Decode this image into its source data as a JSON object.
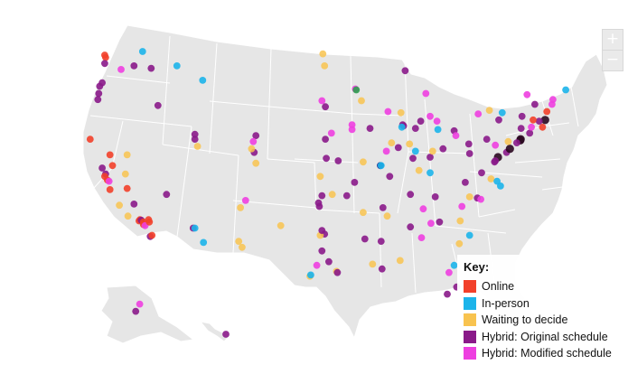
{
  "map": {
    "zoom_in_label": "+",
    "zoom_out_label": "−",
    "legend": {
      "title": "Key:",
      "items": [
        {
          "label": "Online",
          "color": "#f2402a"
        },
        {
          "label": "In-person",
          "color": "#1cb4ea"
        },
        {
          "label": "Waiting to decide",
          "color": "#f8c34f"
        },
        {
          "label": "Hybrid: Original schedule",
          "color": "#8a1a89"
        },
        {
          "label": "Hybrid: Modified schedule",
          "color": "#ee3fe0"
        }
      ]
    },
    "points": [
      {
        "lat": 47.6,
        "lon": -122.3,
        "s": "online"
      },
      {
        "lat": 47.8,
        "lon": -122.4,
        "s": "online"
      },
      {
        "lat": 47.1,
        "lon": -122.4,
        "s": "hybrid_orig"
      },
      {
        "lat": 46.6,
        "lon": -120.5,
        "s": "hybrid_mod"
      },
      {
        "lat": 45.5,
        "lon": -122.7,
        "s": "hybrid_orig"
      },
      {
        "lat": 45.2,
        "lon": -123.0,
        "s": "hybrid_orig"
      },
      {
        "lat": 44.6,
        "lon": -123.1,
        "s": "hybrid_orig"
      },
      {
        "lat": 44.1,
        "lon": -123.2,
        "s": "hybrid_orig"
      },
      {
        "lat": 48.1,
        "lon": -118.0,
        "s": "inperson"
      },
      {
        "lat": 46.9,
        "lon": -119.0,
        "s": "hybrid_orig"
      },
      {
        "lat": 46.7,
        "lon": -117.0,
        "s": "hybrid_orig"
      },
      {
        "lat": 46.9,
        "lon": -114.0,
        "s": "inperson"
      },
      {
        "lat": 45.7,
        "lon": -111.0,
        "s": "inperson"
      },
      {
        "lat": 43.6,
        "lon": -116.2,
        "s": "hybrid_orig"
      },
      {
        "lat": 40.8,
        "lon": -124.1,
        "s": "online"
      },
      {
        "lat": 39.5,
        "lon": -121.8,
        "s": "online"
      },
      {
        "lat": 38.6,
        "lon": -121.5,
        "s": "online"
      },
      {
        "lat": 38.4,
        "lon": -122.7,
        "s": "hybrid_orig"
      },
      {
        "lat": 37.9,
        "lon": -122.3,
        "s": "hybrid_orig"
      },
      {
        "lat": 37.7,
        "lon": -122.4,
        "s": "online"
      },
      {
        "lat": 37.4,
        "lon": -122.1,
        "s": "online"
      },
      {
        "lat": 37.3,
        "lon": -121.9,
        "s": "hybrid_mod"
      },
      {
        "lat": 36.7,
        "lon": -119.8,
        "s": "online"
      },
      {
        "lat": 36.6,
        "lon": -121.8,
        "s": "online"
      },
      {
        "lat": 37.9,
        "lon": -120.0,
        "s": "waiting"
      },
      {
        "lat": 35.3,
        "lon": -120.7,
        "s": "waiting"
      },
      {
        "lat": 35.4,
        "lon": -119.0,
        "s": "hybrid_orig"
      },
      {
        "lat": 34.4,
        "lon": -119.7,
        "s": "waiting"
      },
      {
        "lat": 34.1,
        "lon": -118.3,
        "s": "online"
      },
      {
        "lat": 34.0,
        "lon": -118.4,
        "s": "online"
      },
      {
        "lat": 34.05,
        "lon": -118.15,
        "s": "hybrid_orig"
      },
      {
        "lat": 33.9,
        "lon": -117.9,
        "s": "online"
      },
      {
        "lat": 33.7,
        "lon": -117.9,
        "s": "online"
      },
      {
        "lat": 33.6,
        "lon": -117.7,
        "s": "hybrid_mod"
      },
      {
        "lat": 34.1,
        "lon": -117.3,
        "s": "online"
      },
      {
        "lat": 33.9,
        "lon": -117.2,
        "s": "online"
      },
      {
        "lat": 32.7,
        "lon": -117.1,
        "s": "hybrid_orig"
      },
      {
        "lat": 32.8,
        "lon": -116.9,
        "s": "online"
      },
      {
        "lat": 39.5,
        "lon": -119.8,
        "s": "waiting"
      },
      {
        "lat": 40.8,
        "lon": -111.9,
        "s": "hybrid_orig"
      },
      {
        "lat": 41.2,
        "lon": -111.9,
        "s": "hybrid_orig"
      },
      {
        "lat": 40.2,
        "lon": -111.6,
        "s": "waiting"
      },
      {
        "lat": 36.2,
        "lon": -115.2,
        "s": "hybrid_orig"
      },
      {
        "lat": 41.1,
        "lon": -104.8,
        "s": "hybrid_orig"
      },
      {
        "lat": 40.6,
        "lon": -105.1,
        "s": "hybrid_mod"
      },
      {
        "lat": 39.7,
        "lon": -105.0,
        "s": "hybrid_orig"
      },
      {
        "lat": 40.0,
        "lon": -105.3,
        "s": "waiting"
      },
      {
        "lat": 38.8,
        "lon": -104.8,
        "s": "waiting"
      },
      {
        "lat": 35.1,
        "lon": -106.6,
        "s": "waiting"
      },
      {
        "lat": 35.7,
        "lon": -106.0,
        "s": "hybrid_mod"
      },
      {
        "lat": 33.4,
        "lon": -112.1,
        "s": "hybrid_orig"
      },
      {
        "lat": 33.4,
        "lon": -111.9,
        "s": "inperson"
      },
      {
        "lat": 32.2,
        "lon": -110.9,
        "s": "inperson"
      },
      {
        "lat": 32.3,
        "lon": -106.8,
        "s": "waiting"
      },
      {
        "lat": 31.8,
        "lon": -106.4,
        "s": "waiting"
      },
      {
        "lat": 46.9,
        "lon": -96.8,
        "s": "waiting"
      },
      {
        "lat": 47.9,
        "lon": -97.0,
        "s": "waiting"
      },
      {
        "lat": 44.0,
        "lon": -97.1,
        "s": "hybrid_mod"
      },
      {
        "lat": 43.5,
        "lon": -96.7,
        "s": "hybrid_orig"
      },
      {
        "lat": 41.3,
        "lon": -96.0,
        "s": "hybrid_mod"
      },
      {
        "lat": 40.8,
        "lon": -96.7,
        "s": "hybrid_orig"
      },
      {
        "lat": 39.0,
        "lon": -95.2,
        "s": "hybrid_orig"
      },
      {
        "lat": 39.2,
        "lon": -96.6,
        "s": "hybrid_orig"
      },
      {
        "lat": 37.7,
        "lon": -97.3,
        "s": "waiting"
      },
      {
        "lat": 36.2,
        "lon": -95.9,
        "s": "waiting"
      },
      {
        "lat": 35.2,
        "lon": -97.4,
        "s": "hybrid_orig"
      },
      {
        "lat": 36.1,
        "lon": -97.1,
        "s": "hybrid_orig"
      },
      {
        "lat": 35.5,
        "lon": -97.5,
        "s": "hybrid_orig"
      },
      {
        "lat": 33.6,
        "lon": -101.9,
        "s": "waiting"
      },
      {
        "lat": 32.9,
        "lon": -96.8,
        "s": "hybrid_orig"
      },
      {
        "lat": 32.8,
        "lon": -97.3,
        "s": "waiting"
      },
      {
        "lat": 33.2,
        "lon": -97.1,
        "s": "hybrid_orig"
      },
      {
        "lat": 31.5,
        "lon": -97.1,
        "s": "hybrid_orig"
      },
      {
        "lat": 30.3,
        "lon": -97.7,
        "s": "hybrid_mod"
      },
      {
        "lat": 30.6,
        "lon": -96.3,
        "s": "hybrid_orig"
      },
      {
        "lat": 29.8,
        "lon": -95.4,
        "s": "waiting"
      },
      {
        "lat": 29.7,
        "lon": -95.3,
        "s": "hybrid_orig"
      },
      {
        "lat": 29.4,
        "lon": -98.5,
        "s": "waiting"
      },
      {
        "lat": 29.5,
        "lon": -98.4,
        "s": "inperson"
      },
      {
        "lat": 44.98,
        "lon": -93.2,
        "s": "hybrid_mod"
      },
      {
        "lat": 44.9,
        "lon": -93.1,
        "s": "green"
      },
      {
        "lat": 44.0,
        "lon": -92.5,
        "s": "waiting"
      },
      {
        "lat": 41.7,
        "lon": -91.5,
        "s": "hybrid_orig"
      },
      {
        "lat": 42.0,
        "lon": -93.6,
        "s": "hybrid_mod"
      },
      {
        "lat": 41.6,
        "lon": -93.6,
        "s": "hybrid_mod"
      },
      {
        "lat": 38.9,
        "lon": -92.3,
        "s": "waiting"
      },
      {
        "lat": 38.6,
        "lon": -90.3,
        "s": "navy"
      },
      {
        "lat": 38.6,
        "lon": -90.2,
        "s": "inperson"
      },
      {
        "lat": 37.2,
        "lon": -93.3,
        "s": "hybrid_orig"
      },
      {
        "lat": 36.1,
        "lon": -94.2,
        "s": "hybrid_orig"
      },
      {
        "lat": 34.7,
        "lon": -92.3,
        "s": "waiting"
      },
      {
        "lat": 32.5,
        "lon": -92.1,
        "s": "hybrid_orig"
      },
      {
        "lat": 30.4,
        "lon": -91.2,
        "s": "waiting"
      },
      {
        "lat": 30.0,
        "lon": -90.1,
        "s": "hybrid_orig"
      },
      {
        "lat": 32.3,
        "lon": -90.2,
        "s": "hybrid_orig"
      },
      {
        "lat": 34.4,
        "lon": -89.5,
        "s": "waiting"
      },
      {
        "lat": 33.5,
        "lon": -86.8,
        "s": "hybrid_orig"
      },
      {
        "lat": 32.6,
        "lon": -85.5,
        "s": "hybrid_mod"
      },
      {
        "lat": 30.7,
        "lon": -88.0,
        "s": "waiting"
      },
      {
        "lat": 43.1,
        "lon": -89.4,
        "s": "hybrid_mod"
      },
      {
        "lat": 43.0,
        "lon": -87.9,
        "s": "waiting"
      },
      {
        "lat": 41.9,
        "lon": -87.6,
        "s": "hybrid_orig"
      },
      {
        "lat": 42.0,
        "lon": -87.7,
        "s": "hybrid_orig"
      },
      {
        "lat": 41.8,
        "lon": -87.8,
        "s": "inperson"
      },
      {
        "lat": 40.1,
        "lon": -88.2,
        "s": "hybrid_orig"
      },
      {
        "lat": 40.5,
        "lon": -89.0,
        "s": "waiting"
      },
      {
        "lat": 39.8,
        "lon": -89.6,
        "s": "hybrid_mod"
      },
      {
        "lat": 37.7,
        "lon": -89.2,
        "s": "hybrid_orig"
      },
      {
        "lat": 41.7,
        "lon": -86.2,
        "s": "hybrid_orig"
      },
      {
        "lat": 40.4,
        "lon": -86.9,
        "s": "waiting"
      },
      {
        "lat": 39.8,
        "lon": -86.2,
        "s": "inperson"
      },
      {
        "lat": 39.2,
        "lon": -86.5,
        "s": "hybrid_orig"
      },
      {
        "lat": 42.3,
        "lon": -83.7,
        "s": "hybrid_mod"
      },
      {
        "lat": 42.7,
        "lon": -84.5,
        "s": "hybrid_mod"
      },
      {
        "lat": 42.3,
        "lon": -85.6,
        "s": "hybrid_orig"
      },
      {
        "lat": 44.6,
        "lon": -85.0,
        "s": "hybrid_mod"
      },
      {
        "lat": 46.5,
        "lon": -87.4,
        "s": "hybrid_orig"
      },
      {
        "lat": 41.5,
        "lon": -81.7,
        "s": "hybrid_orig"
      },
      {
        "lat": 41.1,
        "lon": -81.5,
        "s": "hybrid_mod"
      },
      {
        "lat": 40.0,
        "lon": -83.0,
        "s": "hybrid_orig"
      },
      {
        "lat": 39.3,
        "lon": -84.5,
        "s": "hybrid_orig"
      },
      {
        "lat": 39.8,
        "lon": -84.2,
        "s": "waiting"
      },
      {
        "lat": 41.6,
        "lon": -83.6,
        "s": "inperson"
      },
      {
        "lat": 38.2,
        "lon": -85.8,
        "s": "waiting"
      },
      {
        "lat": 38.0,
        "lon": -84.5,
        "s": "inperson"
      },
      {
        "lat": 36.2,
        "lon": -86.8,
        "s": "hybrid_orig"
      },
      {
        "lat": 36.0,
        "lon": -83.9,
        "s": "hybrid_orig"
      },
      {
        "lat": 35.1,
        "lon": -90.0,
        "s": "hybrid_orig"
      },
      {
        "lat": 35.0,
        "lon": -85.3,
        "s": "hybrid_mod"
      },
      {
        "lat": 33.8,
        "lon": -84.4,
        "s": "hybrid_mod"
      },
      {
        "lat": 33.9,
        "lon": -83.4,
        "s": "hybrid_orig"
      },
      {
        "lat": 32.1,
        "lon": -81.1,
        "s": "waiting"
      },
      {
        "lat": 30.3,
        "lon": -81.7,
        "s": "inperson"
      },
      {
        "lat": 29.7,
        "lon": -82.3,
        "s": "hybrid_mod"
      },
      {
        "lat": 28.5,
        "lon": -81.4,
        "s": "hybrid_orig"
      },
      {
        "lat": 27.9,
        "lon": -82.5,
        "s": "hybrid_orig"
      },
      {
        "lat": 26.1,
        "lon": -80.1,
        "s": "hybrid_orig"
      },
      {
        "lat": 34.0,
        "lon": -81.0,
        "s": "waiting"
      },
      {
        "lat": 32.8,
        "lon": -79.9,
        "s": "inperson"
      },
      {
        "lat": 35.2,
        "lon": -80.8,
        "s": "hybrid_mod"
      },
      {
        "lat": 35.9,
        "lon": -79.0,
        "s": "hybrid_orig"
      },
      {
        "lat": 35.8,
        "lon": -78.6,
        "s": "hybrid_mod"
      },
      {
        "lat": 36.0,
        "lon": -79.9,
        "s": "waiting"
      },
      {
        "lat": 37.5,
        "lon": -77.4,
        "s": "waiting"
      },
      {
        "lat": 38.0,
        "lon": -78.5,
        "s": "hybrid_orig"
      },
      {
        "lat": 37.2,
        "lon": -80.4,
        "s": "hybrid_orig"
      },
      {
        "lat": 36.9,
        "lon": -76.3,
        "s": "inperson"
      },
      {
        "lat": 37.3,
        "lon": -76.7,
        "s": "inperson"
      },
      {
        "lat": 39.6,
        "lon": -79.9,
        "s": "hybrid_orig"
      },
      {
        "lat": 38.9,
        "lon": -77.0,
        "s": "hybrid_orig"
      },
      {
        "lat": 39.3,
        "lon": -76.6,
        "s": "black"
      },
      {
        "lat": 39.0,
        "lon": -76.9,
        "s": "hybrid_orig"
      },
      {
        "lat": 39.7,
        "lon": -75.6,
        "s": "hybrid_orig"
      },
      {
        "lat": 40.0,
        "lon": -75.2,
        "s": "black"
      },
      {
        "lat": 40.4,
        "lon": -80.0,
        "s": "hybrid_orig"
      },
      {
        "lat": 40.8,
        "lon": -77.9,
        "s": "hybrid_orig"
      },
      {
        "lat": 40.6,
        "lon": -75.4,
        "s": "waiting"
      },
      {
        "lat": 40.3,
        "lon": -76.9,
        "s": "hybrid_mod"
      },
      {
        "lat": 40.7,
        "lon": -74.0,
        "s": "black"
      },
      {
        "lat": 40.8,
        "lon": -73.95,
        "s": "black"
      },
      {
        "lat": 40.5,
        "lon": -74.4,
        "s": "hybrid_orig"
      },
      {
        "lat": 41.3,
        "lon": -72.9,
        "s": "hybrid_orig"
      },
      {
        "lat": 41.8,
        "lon": -72.7,
        "s": "hybrid_mod"
      },
      {
        "lat": 41.8,
        "lon": -71.4,
        "s": "online"
      },
      {
        "lat": 42.4,
        "lon": -71.1,
        "s": "black"
      },
      {
        "lat": 42.3,
        "lon": -71.8,
        "s": "hybrid_orig"
      },
      {
        "lat": 42.4,
        "lon": -72.5,
        "s": "online"
      },
      {
        "lat": 42.9,
        "lon": -78.9,
        "s": "hybrid_mod"
      },
      {
        "lat": 43.2,
        "lon": -77.6,
        "s": "waiting"
      },
      {
        "lat": 43.0,
        "lon": -76.1,
        "s": "inperson"
      },
      {
        "lat": 42.4,
        "lon": -76.5,
        "s": "hybrid_orig"
      },
      {
        "lat": 42.7,
        "lon": -73.8,
        "s": "hybrid_orig"
      },
      {
        "lat": 41.7,
        "lon": -73.9,
        "s": "hybrid_orig"
      },
      {
        "lat": 44.5,
        "lon": -73.2,
        "s": "hybrid_mod"
      },
      {
        "lat": 43.7,
        "lon": -72.3,
        "s": "hybrid_orig"
      },
      {
        "lat": 43.1,
        "lon": -70.9,
        "s": "online"
      },
      {
        "lat": 44.1,
        "lon": -70.2,
        "s": "hybrid_mod"
      },
      {
        "lat": 44.9,
        "lon": -68.7,
        "s": "inperson"
      },
      {
        "lat": 43.7,
        "lon": -70.3,
        "s": "hybrid_mod"
      },
      {
        "lat": 61.2,
        "lon": -149.9,
        "s": "hybrid_orig"
      },
      {
        "lat": 64.8,
        "lon": -147.7,
        "s": "hybrid_mod"
      },
      {
        "lat": 21.3,
        "lon": -157.8,
        "s": "hybrid_orig"
      }
    ]
  }
}
